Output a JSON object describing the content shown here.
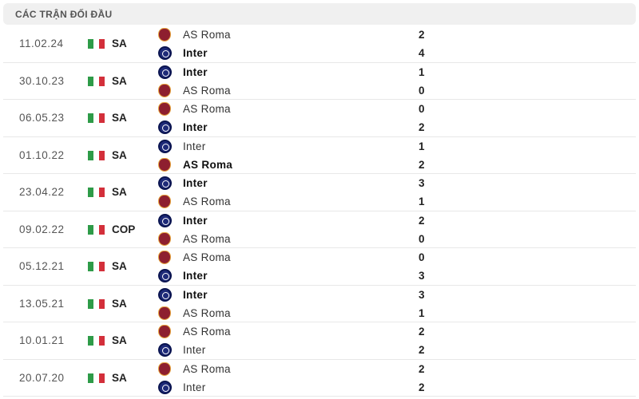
{
  "header": {
    "title": "CÁC TRẬN ĐỐI ĐẦU"
  },
  "colors": {
    "flag": [
      "#2e9b48",
      "#ffffff",
      "#d32f3a"
    ]
  },
  "matches": [
    {
      "date": "11.02.24",
      "competition": "SA",
      "home": {
        "name": "AS Roma",
        "logo": "roma",
        "score": "2",
        "winner": false
      },
      "away": {
        "name": "Inter",
        "logo": "inter",
        "score": "4",
        "winner": true
      }
    },
    {
      "date": "30.10.23",
      "competition": "SA",
      "home": {
        "name": "Inter",
        "logo": "inter",
        "score": "1",
        "winner": true
      },
      "away": {
        "name": "AS Roma",
        "logo": "roma",
        "score": "0",
        "winner": false
      }
    },
    {
      "date": "06.05.23",
      "competition": "SA",
      "home": {
        "name": "AS Roma",
        "logo": "roma",
        "score": "0",
        "winner": false
      },
      "away": {
        "name": "Inter",
        "logo": "inter",
        "score": "2",
        "winner": true
      }
    },
    {
      "date": "01.10.22",
      "competition": "SA",
      "home": {
        "name": "Inter",
        "logo": "inter",
        "score": "1",
        "winner": false
      },
      "away": {
        "name": "AS Roma",
        "logo": "roma",
        "score": "2",
        "winner": true
      }
    },
    {
      "date": "23.04.22",
      "competition": "SA",
      "home": {
        "name": "Inter",
        "logo": "inter",
        "score": "3",
        "winner": true
      },
      "away": {
        "name": "AS Roma",
        "logo": "roma",
        "score": "1",
        "winner": false
      }
    },
    {
      "date": "09.02.22",
      "competition": "COP",
      "home": {
        "name": "Inter",
        "logo": "inter",
        "score": "2",
        "winner": true
      },
      "away": {
        "name": "AS Roma",
        "logo": "roma",
        "score": "0",
        "winner": false
      }
    },
    {
      "date": "05.12.21",
      "competition": "SA",
      "home": {
        "name": "AS Roma",
        "logo": "roma",
        "score": "0",
        "winner": false
      },
      "away": {
        "name": "Inter",
        "logo": "inter",
        "score": "3",
        "winner": true
      }
    },
    {
      "date": "13.05.21",
      "competition": "SA",
      "home": {
        "name": "Inter",
        "logo": "inter",
        "score": "3",
        "winner": true
      },
      "away": {
        "name": "AS Roma",
        "logo": "roma",
        "score": "1",
        "winner": false
      }
    },
    {
      "date": "10.01.21",
      "competition": "SA",
      "home": {
        "name": "AS Roma",
        "logo": "roma",
        "score": "2",
        "winner": false
      },
      "away": {
        "name": "Inter",
        "logo": "inter",
        "score": "2",
        "winner": false
      }
    },
    {
      "date": "20.07.20",
      "competition": "SA",
      "home": {
        "name": "AS Roma",
        "logo": "roma",
        "score": "2",
        "winner": false
      },
      "away": {
        "name": "Inter",
        "logo": "inter",
        "score": "2",
        "winner": false
      }
    }
  ]
}
